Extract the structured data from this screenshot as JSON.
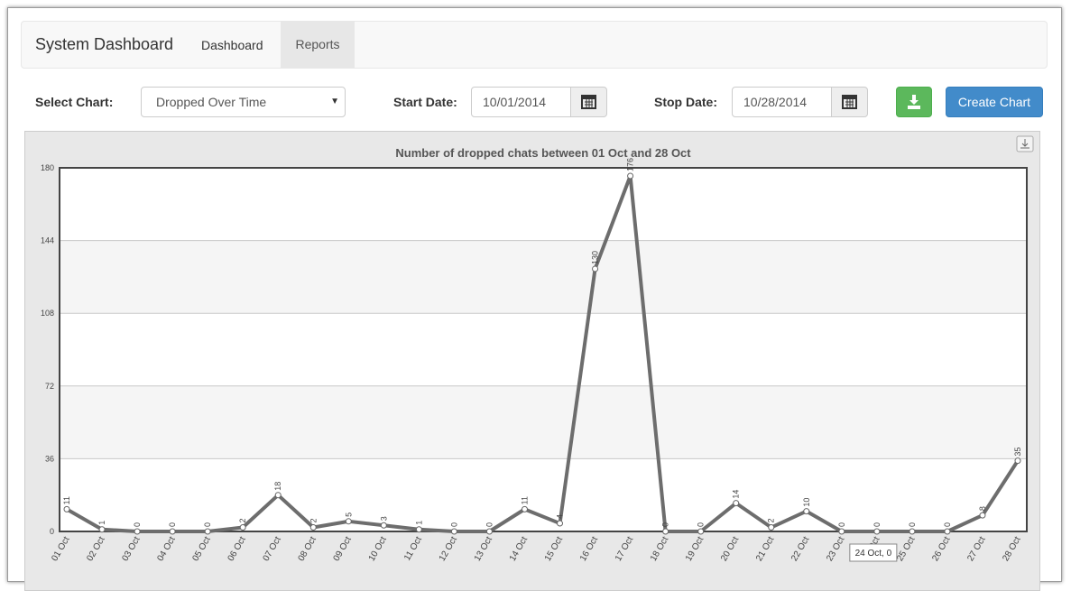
{
  "navbar": {
    "brand": "System Dashboard",
    "items": [
      "Dashboard",
      "Reports"
    ]
  },
  "form": {
    "select_label": "Select Chart:",
    "select_value": "Dropped Over Time",
    "start_label": "Start Date:",
    "start_value": "10/01/2014",
    "stop_label": "Stop Date:",
    "stop_value": "10/28/2014",
    "create_button": "Create Chart"
  },
  "chart_data": {
    "type": "line",
    "title": "Number of dropped chats between 01 Oct and 28 Oct",
    "categories": [
      "01 Oct",
      "02 Oct",
      "03 Oct",
      "04 Oct",
      "05 Oct",
      "06 Oct",
      "07 Oct",
      "08 Oct",
      "09 Oct",
      "10 Oct",
      "11 Oct",
      "12 Oct",
      "13 Oct",
      "14 Oct",
      "15 Oct",
      "16 Oct",
      "17 Oct",
      "18 Oct",
      "19 Oct",
      "20 Oct",
      "21 Oct",
      "22 Oct",
      "23 Oct",
      "24 Oct",
      "25 Oct",
      "26 Oct",
      "27 Oct",
      "28 Oct"
    ],
    "values": [
      11,
      1,
      0,
      0,
      0,
      2,
      18,
      2,
      5,
      3,
      1,
      0,
      0,
      11,
      4,
      130,
      176,
      0,
      0,
      14,
      2,
      10,
      0,
      0,
      0,
      0,
      8,
      35
    ],
    "color": "#6d6d6d",
    "ylim": [
      0,
      180
    ],
    "yticks": [
      0,
      36,
      72,
      108,
      144,
      180
    ],
    "grid": true,
    "tooltip": "24 Oct, 0"
  }
}
